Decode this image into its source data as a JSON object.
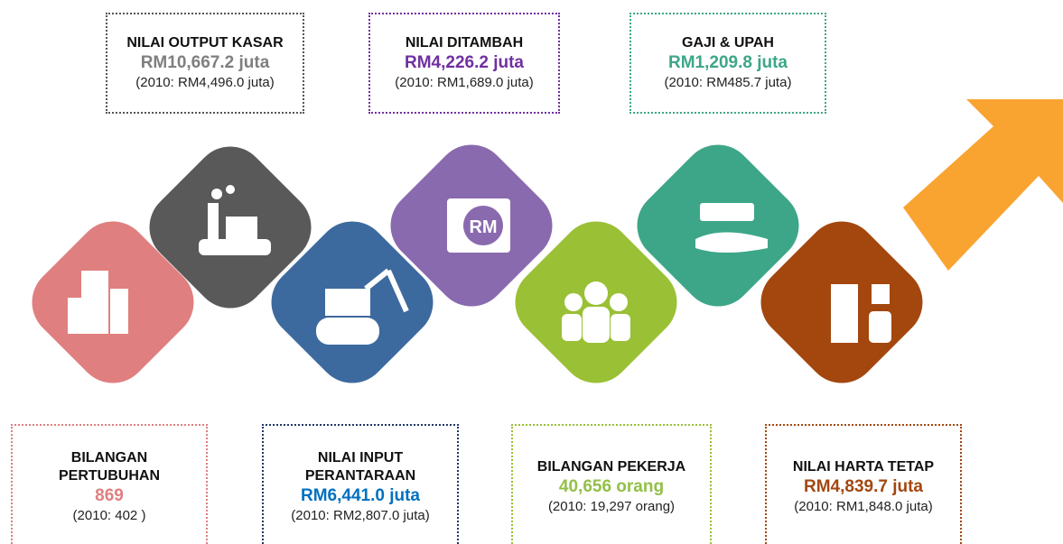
{
  "top_boxes": [
    {
      "title": "NILAI OUTPUT KASAR",
      "value": "RM10,667.2 juta",
      "comparison": "(2010: RM4,496.0 juta)"
    },
    {
      "title": "NILAI DITAMBAH",
      "value": "RM4,226.2 juta",
      "comparison": "(2010: RM1,689.0 juta)"
    },
    {
      "title": "GAJI & UPAH",
      "value": "RM1,209.8 juta",
      "comparison": "(2010: RM485.7 juta)"
    }
  ],
  "bottom_boxes": [
    {
      "title": "BILANGAN PERTUBUHAN",
      "value": "869",
      "comparison": "(2010: 402 )"
    },
    {
      "title": "NILAI INPUT PERANTARAAN",
      "value": "RM6,441.0 juta",
      "comparison": "(2010: RM2,807.0 juta)"
    },
    {
      "title": "BILANGAN PEKERJA",
      "value": "40,656 orang",
      "comparison": "(2010: 19,297 orang)"
    },
    {
      "title": "NILAI HARTA TETAP",
      "value": "RM4,839.7 juta",
      "comparison": "(2010: RM1,848.0 juta)"
    }
  ],
  "icon_label": "RM"
}
